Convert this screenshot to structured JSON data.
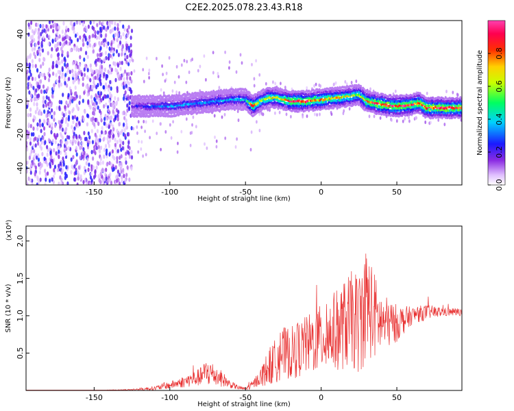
{
  "title": "C2E2.2025.078.23.43.R18",
  "colors": {
    "snr_line": "#e83030",
    "frame": "#000000"
  },
  "chart_data": [
    {
      "type": "heatmap",
      "name": "spectrogram",
      "xlabel": "Height of straight line (km)",
      "ylabel": "Frequency (Hz)",
      "xlim": [
        -195,
        93
      ],
      "ylim": [
        -50,
        48
      ],
      "xticks": [
        -150,
        -100,
        -50,
        0,
        50
      ],
      "yticks": [
        -40,
        -20,
        0,
        20,
        40
      ],
      "colorbar": {
        "label": "Normalized spectral amplitude",
        "range": [
          0,
          1
        ],
        "ticks": [
          0.0,
          0.2,
          0.4,
          0.6,
          0.8
        ],
        "tick_labels": [
          "0.0",
          "0.2",
          "0.4",
          "0.6",
          "0.8"
        ],
        "colormap": "rainbow (white-violet-blue-cyan-green-yellow-red-magenta)"
      },
      "ridge": {
        "x": [
          -125,
          -110,
          -100,
          -90,
          -80,
          -70,
          -60,
          -50,
          -45,
          -40,
          -35,
          -30,
          -25,
          -20,
          -10,
          0,
          10,
          20,
          25,
          30,
          40,
          50,
          60,
          65,
          70,
          80,
          93
        ],
        "y": [
          -3,
          -3,
          -3,
          -2,
          -1,
          0,
          1,
          1,
          -3,
          0,
          2,
          2,
          1,
          0,
          0,
          1,
          2,
          3,
          4,
          0,
          -2,
          -3,
          -2,
          -1,
          -4,
          -4,
          -4
        ],
        "amplitude": [
          0.2,
          0.3,
          0.35,
          0.35,
          0.35,
          0.4,
          0.4,
          0.4,
          0.9,
          0.6,
          0.7,
          0.7,
          0.8,
          0.9,
          0.9,
          0.8,
          0.75,
          0.7,
          0.6,
          0.85,
          0.95,
          0.95,
          0.95,
          0.9,
          0.95,
          0.95,
          0.95
        ]
      },
      "noise_region_xlim": [
        -195,
        -125
      ]
    },
    {
      "type": "line",
      "name": "snr",
      "xlabel": "Height of straight line (km)",
      "ylabel": "SNR (10 * v/v)",
      "scale_label": "(x10⁴)",
      "xlim": [
        -195,
        93
      ],
      "ylim": [
        0,
        2.2
      ],
      "xticks": [
        -150,
        -100,
        -50,
        0,
        50
      ],
      "yticks": [
        0.5,
        1.0,
        1.5,
        2.0
      ],
      "ytick_labels": [
        "0.5",
        "1.0",
        "1.5",
        "2.0"
      ],
      "series": [
        {
          "x": [
            -195,
            -150,
            -125,
            -110,
            -100,
            -90,
            -80,
            -75,
            -70,
            -65,
            -60,
            -55,
            -50,
            -45,
            -40,
            -35,
            -30,
            -25,
            -20,
            -10,
            0,
            10,
            20,
            25,
            30,
            35,
            40,
            50,
            60,
            70,
            80,
            93
          ],
          "y": [
            0.0,
            0.0,
            0.01,
            0.03,
            0.07,
            0.12,
            0.18,
            0.25,
            0.2,
            0.15,
            0.08,
            0.04,
            0.02,
            0.08,
            0.18,
            0.3,
            0.4,
            0.5,
            0.5,
            0.6,
            0.7,
            0.8,
            0.95,
            0.9,
            1.2,
            1.0,
            0.9,
            0.9,
            1.0,
            1.05,
            1.05,
            1.05
          ],
          "spread": [
            0.0,
            0.0,
            0.01,
            0.03,
            0.05,
            0.08,
            0.12,
            0.2,
            0.15,
            0.1,
            0.05,
            0.03,
            0.02,
            0.06,
            0.12,
            0.25,
            0.3,
            0.35,
            0.35,
            0.4,
            0.45,
            0.55,
            0.65,
            0.7,
            0.8,
            0.6,
            0.4,
            0.25,
            0.12,
            0.1,
            0.06,
            0.05
          ]
        }
      ]
    }
  ]
}
